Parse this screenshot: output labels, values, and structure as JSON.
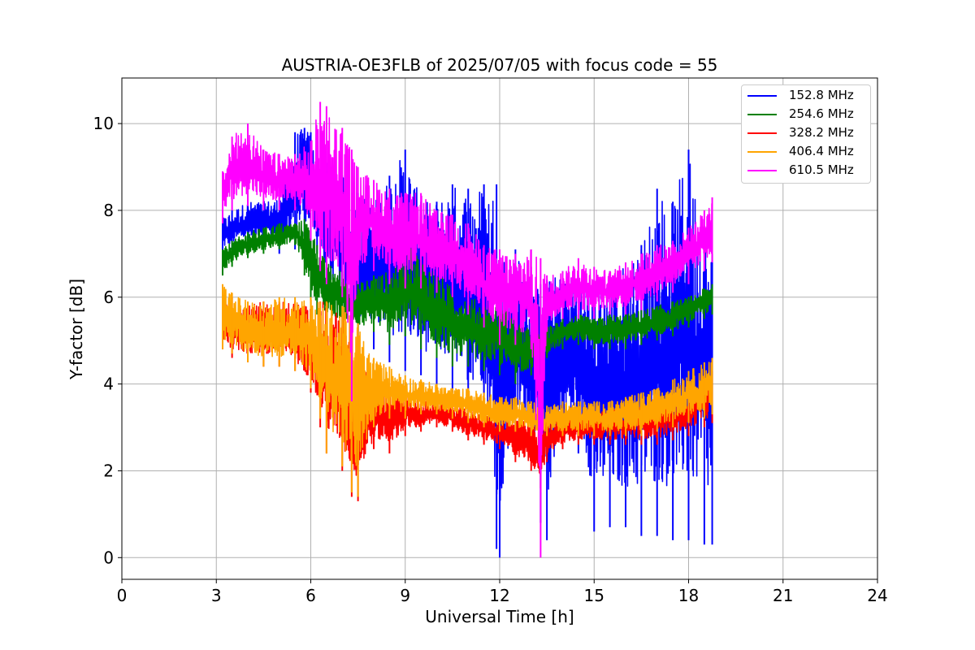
{
  "chart_data": {
    "type": "line",
    "title": "AUSTRIA-OE3FLB of 2025/07/05 with focus code = 55",
    "xlabel": "Universal Time [h]",
    "ylabel": "Y-factor [dB]",
    "xlim": [
      0,
      24
    ],
    "ylim": [
      -0.5,
      11.05
    ],
    "xticks": [
      "0",
      "3",
      "6",
      "9",
      "12",
      "15",
      "18",
      "21",
      "24"
    ],
    "yticks": [
      "0",
      "2",
      "4",
      "6",
      "8",
      "10"
    ],
    "grid": true,
    "legend_position": "top-right",
    "series": [
      {
        "name": "152.8 MHz",
        "color": "#0000ff",
        "x": [
          3.2,
          3.5,
          4.0,
          4.5,
          5.0,
          5.5,
          5.8,
          6.0,
          6.2,
          6.5,
          7.0,
          7.5,
          8.0,
          8.5,
          9.0,
          9.5,
          10.0,
          10.5,
          11.0,
          11.5,
          11.9,
          12.0,
          12.5,
          13.0,
          13.3,
          13.5,
          14.0,
          14.5,
          15.0,
          15.5,
          16.0,
          16.5,
          17.0,
          17.5,
          18.0,
          18.5,
          18.75
        ],
        "low": [
          7.0,
          7.1,
          7.2,
          7.3,
          7.0,
          7.1,
          7.4,
          7.2,
          7.0,
          6.0,
          5.6,
          5.0,
          4.8,
          4.5,
          4.3,
          4.2,
          4.0,
          3.8,
          3.3,
          3.2,
          0.2,
          0.0,
          2.6,
          2.4,
          0.8,
          0.4,
          2.5,
          2.4,
          0.6,
          0.7,
          0.7,
          0.5,
          0.5,
          0.4,
          0.4,
          0.3,
          0.3
        ],
        "high": [
          7.8,
          8.0,
          8.2,
          8.2,
          8.3,
          9.8,
          9.9,
          9.8,
          9.2,
          9.1,
          8.8,
          8.4,
          8.2,
          8.8,
          9.4,
          8.2,
          8.2,
          8.6,
          8.5,
          8.6,
          8.6,
          7.1,
          7.1,
          6.2,
          6.3,
          6.4,
          6.6,
          6.5,
          6.4,
          6.6,
          6.8,
          7.2,
          8.5,
          8.2,
          9.4,
          7.6,
          7.0
        ]
      },
      {
        "name": "254.6 MHz",
        "color": "#008000",
        "x": [
          3.2,
          3.5,
          4.0,
          4.5,
          5.0,
          5.5,
          5.8,
          6.0,
          6.2,
          6.5,
          7.0,
          7.5,
          8.0,
          8.5,
          9.0,
          9.5,
          10.0,
          10.5,
          11.0,
          11.5,
          12.0,
          12.5,
          13.0,
          13.5,
          14.0,
          14.5,
          15.0,
          15.5,
          16.0,
          16.5,
          17.0,
          17.5,
          18.0,
          18.5,
          18.75
        ],
        "low": [
          6.5,
          6.7,
          6.9,
          7.0,
          7.1,
          7.2,
          6.5,
          6.0,
          5.6,
          5.4,
          5.3,
          5.1,
          5.2,
          4.9,
          5.1,
          4.8,
          4.6,
          4.4,
          4.4,
          4.3,
          4.2,
          4.0,
          4.2,
          4.6,
          4.8,
          4.9,
          4.8,
          4.8,
          4.8,
          4.9,
          5.0,
          5.1,
          5.3,
          5.5,
          5.6
        ],
        "high": [
          7.1,
          7.3,
          7.5,
          7.6,
          7.7,
          7.7,
          7.8,
          7.7,
          7.2,
          6.8,
          6.6,
          6.3,
          6.5,
          6.6,
          7.2,
          7.0,
          6.6,
          6.2,
          6.0,
          5.9,
          5.8,
          5.6,
          5.2,
          5.3,
          5.5,
          5.6,
          5.5,
          5.6,
          5.6,
          5.7,
          5.8,
          5.9,
          6.0,
          6.2,
          6.3
        ]
      },
      {
        "name": "328.2 MHz",
        "color": "#ff0000",
        "x": [
          3.2,
          3.5,
          4.0,
          4.5,
          5.0,
          5.5,
          6.0,
          6.3,
          6.5,
          7.0,
          7.3,
          7.5,
          8.0,
          8.5,
          9.0,
          9.5,
          10.0,
          10.5,
          11.0,
          11.5,
          12.0,
          12.5,
          13.0,
          13.3,
          13.5,
          14.0,
          14.5,
          15.0,
          15.5,
          16.0,
          16.5,
          17.0,
          17.5,
          18.0,
          18.5,
          18.75
        ],
        "low": [
          4.8,
          4.6,
          4.5,
          4.4,
          4.4,
          4.3,
          3.8,
          3.0,
          2.4,
          2.0,
          1.4,
          1.3,
          2.5,
          2.4,
          2.8,
          2.9,
          3.0,
          2.9,
          2.7,
          2.6,
          2.5,
          2.2,
          2.0,
          1.6,
          2.2,
          2.5,
          2.6,
          2.6,
          2.6,
          2.6,
          2.6,
          2.6,
          2.7,
          2.8,
          3.0,
          3.1
        ],
        "high": [
          6.1,
          6.0,
          5.8,
          5.9,
          5.9,
          5.9,
          5.8,
          5.9,
          5.9,
          5.6,
          5.2,
          4.5,
          4.1,
          3.9,
          3.8,
          3.6,
          3.6,
          3.5,
          3.4,
          3.3,
          3.2,
          3.2,
          3.2,
          3.0,
          3.2,
          3.4,
          3.4,
          3.4,
          3.4,
          3.5,
          3.6,
          3.6,
          3.7,
          3.9,
          4.2,
          4.3
        ]
      },
      {
        "name": "406.4 MHz",
        "color": "#ffa500",
        "x": [
          3.2,
          3.5,
          4.0,
          4.5,
          5.0,
          5.5,
          6.0,
          6.3,
          6.5,
          7.0,
          7.3,
          7.5,
          8.0,
          8.5,
          9.0,
          9.5,
          10.0,
          10.5,
          11.0,
          11.5,
          12.0,
          12.5,
          13.0,
          13.3,
          13.5,
          14.0,
          14.5,
          15.0,
          15.5,
          16.0,
          16.5,
          17.0,
          17.5,
          18.0,
          18.5,
          18.75
        ],
        "low": [
          4.8,
          4.7,
          4.5,
          4.4,
          4.4,
          4.3,
          3.9,
          3.2,
          2.4,
          2.1,
          1.5,
          1.4,
          3.0,
          3.2,
          3.2,
          3.3,
          3.3,
          3.2,
          3.1,
          3.0,
          2.9,
          2.9,
          2.8,
          2.7,
          2.8,
          2.8,
          2.8,
          2.8,
          2.8,
          2.8,
          2.8,
          2.9,
          3.0,
          3.1,
          3.2,
          3.3
        ],
        "high": [
          6.3,
          6.1,
          5.9,
          5.9,
          6.0,
          6.0,
          6.0,
          5.9,
          5.9,
          5.8,
          5.6,
          5.4,
          4.6,
          4.4,
          4.2,
          4.1,
          4.0,
          3.9,
          3.9,
          3.8,
          3.7,
          3.7,
          3.6,
          3.5,
          3.5,
          3.6,
          3.6,
          3.6,
          3.6,
          3.7,
          3.8,
          3.9,
          4.1,
          4.3,
          4.5,
          4.6
        ]
      },
      {
        "name": "610.5 MHz",
        "color": "#ff00ff",
        "x": [
          3.2,
          3.5,
          4.0,
          4.5,
          5.0,
          5.5,
          6.0,
          6.3,
          6.5,
          7.0,
          7.3,
          7.5,
          8.0,
          8.5,
          9.0,
          9.5,
          10.0,
          10.5,
          11.0,
          11.5,
          12.0,
          12.5,
          13.0,
          13.3,
          13.5,
          14.0,
          14.5,
          15.0,
          15.5,
          16.0,
          16.5,
          17.0,
          17.5,
          18.0,
          18.5,
          18.75
        ],
        "low": [
          7.7,
          8.0,
          8.1,
          8.0,
          8.0,
          8.0,
          7.3,
          6.6,
          6.3,
          6.0,
          3.6,
          6.3,
          6.6,
          6.3,
          6.2,
          6.2,
          6.1,
          6.0,
          5.6,
          5.3,
          4.9,
          4.9,
          4.8,
          0.0,
          5.2,
          5.5,
          5.5,
          5.5,
          5.6,
          5.6,
          5.7,
          5.9,
          6.1,
          6.3,
          6.6,
          6.8
        ],
        "high": [
          8.9,
          9.7,
          10.0,
          9.4,
          9.3,
          9.3,
          9.6,
          10.5,
          10.4,
          9.9,
          9.4,
          9.0,
          8.7,
          8.5,
          8.4,
          8.4,
          8.0,
          7.9,
          7.7,
          7.2,
          7.1,
          7.0,
          7.1,
          6.9,
          6.5,
          6.6,
          6.9,
          6.7,
          6.6,
          6.8,
          7.0,
          7.2,
          7.3,
          7.6,
          8.0,
          8.3
        ]
      }
    ]
  }
}
